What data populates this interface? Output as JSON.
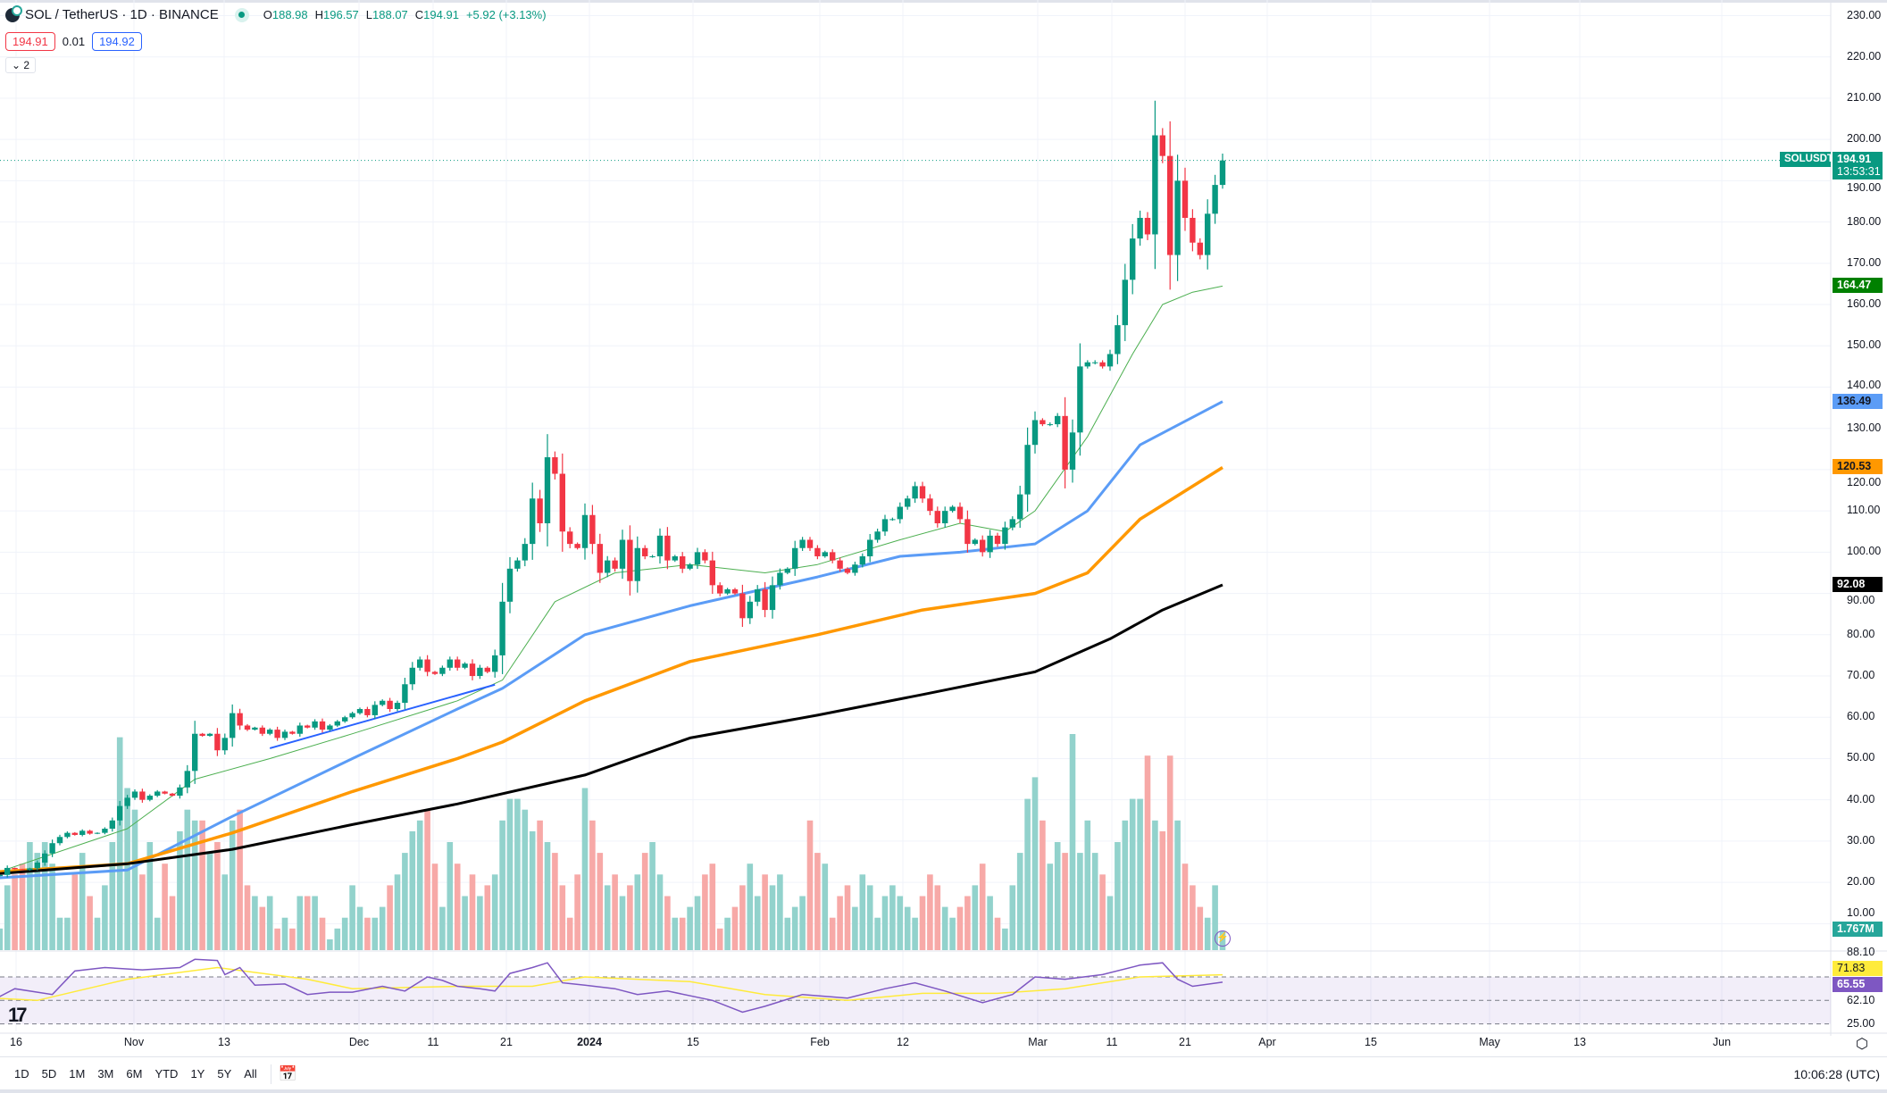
{
  "header": {
    "symbol": "SOL / TetherUS · 1D · BINANCE",
    "open_label": "O",
    "open": "188.98",
    "high_label": "H",
    "high": "196.57",
    "low_label": "L",
    "low": "188.07",
    "close_label": "C",
    "close": "194.91",
    "change": "+5.92 (+3.13%)",
    "bid": "194.91",
    "spread": "0.01",
    "ask": "194.92",
    "indicators_collapsed": "⌄ 2"
  },
  "price_axis": {
    "ticks": [
      "230.00",
      "220.00",
      "210.00",
      "200.00",
      "190.00",
      "180.00",
      "170.00",
      "160.00",
      "150.00",
      "140.00",
      "130.00",
      "120.00",
      "110.00",
      "100.00",
      "90.00",
      "80.00",
      "70.00",
      "60.00",
      "50.00",
      "40.00",
      "30.00",
      "20.00",
      "10.00"
    ],
    "symbol_tag": "SOLUSDT",
    "last_price": "194.91",
    "countdown": "13:53:31",
    "ma_badges": [
      {
        "value": "164.47",
        "color": "#008000",
        "text_color": "#ffffff"
      },
      {
        "value": "136.49",
        "color": "#5b9cf6",
        "text_color": "#131722"
      },
      {
        "value": "120.53",
        "color": "#ff9800",
        "text_color": "#131722"
      },
      {
        "value": "92.08",
        "color": "#000000",
        "text_color": "#ffffff"
      }
    ],
    "volume_badge": "1.767M"
  },
  "rsi_axis": {
    "ticks": [
      "88.10",
      "62.10",
      "25.00"
    ],
    "rsi_ma_badge": "71.83",
    "rsi_badge": "65.55",
    "rsi_ma_color": "#ffeb3b",
    "rsi_color": "#7e57c2"
  },
  "time_axis": [
    "16",
    "Nov",
    "13",
    "Dec",
    "11",
    "21",
    "2024",
    "15",
    "Feb",
    "12",
    "Mar",
    "11",
    "21",
    "Apr",
    "15",
    "May",
    "13",
    "Jun"
  ],
  "toolbar": {
    "ranges": [
      "1D",
      "5D",
      "1M",
      "3M",
      "6M",
      "YTD",
      "1Y",
      "5Y",
      "All"
    ],
    "goto_icon": "calendar-goto-icon",
    "clock": "10:06:28 (UTC)"
  },
  "colors": {
    "up": "#089981",
    "down": "#f23645",
    "vol_up": "#92d2cc",
    "vol_down": "#f7a9a7"
  },
  "chart_data": {
    "type": "candlestick",
    "start_date": "2023-10-14",
    "end_date": "2024-03-26",
    "ylim": [
      10,
      230
    ],
    "last_candle": {
      "open": 188.98,
      "high": 196.57,
      "low": 188.07,
      "close": 194.91
    },
    "closes": [
      21.5,
      21.8,
      23.5,
      23.2,
      23,
      23.4,
      24.8,
      27,
      29.5,
      31,
      32,
      31.5,
      32.5,
      31.8,
      32,
      33,
      35,
      38.5,
      40.5,
      42,
      40,
      41,
      42,
      41.5,
      41,
      43,
      47,
      56,
      55.5,
      56,
      52,
      55,
      61,
      58,
      57,
      57.5,
      56,
      57,
      55,
      56.5,
      56,
      58,
      57.5,
      59,
      57,
      58,
      59,
      60,
      61,
      62,
      60.5,
      63,
      64,
      62,
      63.5,
      68,
      72,
      74,
      71,
      70.5,
      72,
      74,
      72,
      73,
      70,
      72,
      71,
      75,
      88,
      96,
      98,
      102,
      113,
      107,
      123,
      119,
      105,
      102,
      101,
      109,
      102,
      95,
      98,
      96,
      103,
      93,
      101,
      99,
      99,
      104,
      98,
      99,
      96,
      97,
      100,
      98,
      92,
      90,
      91,
      90,
      84,
      88,
      91,
      86,
      92,
      95,
      96,
      101,
      103,
      101,
      99,
      100,
      98,
      96,
      95,
      97,
      99,
      103,
      105,
      108,
      108,
      111,
      113,
      116,
      113,
      110,
      107,
      110,
      111,
      108,
      102,
      103,
      100,
      104,
      102,
      106,
      108,
      114,
      126,
      132,
      131,
      131,
      133,
      120,
      129,
      145,
      146,
      146,
      145,
      148,
      155,
      166,
      176,
      181,
      177,
      201,
      196,
      172,
      190,
      181,
      175,
      172,
      182,
      188.98,
      194.91
    ],
    "volume_millions": [
      1,
      2,
      6,
      7,
      8,
      10,
      9,
      10,
      8,
      3,
      3,
      7,
      9,
      5,
      3,
      6,
      10,
      19.7,
      15,
      13,
      7,
      10,
      3,
      8,
      5,
      11,
      13,
      12,
      12,
      9,
      10,
      7,
      12,
      13,
      6,
      5,
      4,
      5,
      2,
      3,
      2,
      5,
      5,
      5,
      3,
      1,
      2,
      3,
      6,
      4,
      3,
      3,
      4,
      6,
      7,
      9,
      11,
      12,
      13,
      8,
      4,
      10,
      8,
      5,
      7,
      5,
      6,
      7,
      12,
      14,
      14,
      13,
      11,
      12,
      10,
      9,
      6,
      3,
      7,
      15,
      12,
      9,
      6,
      7,
      5,
      6,
      7,
      9,
      10,
      7,
      5,
      3,
      3,
      4,
      5,
      7,
      8,
      2,
      3,
      4,
      6,
      8,
      5,
      7,
      6,
      7,
      3,
      4,
      5,
      12,
      9,
      8,
      3,
      5,
      6,
      4,
      7,
      6,
      3,
      5,
      6,
      5,
      4,
      3,
      5,
      7,
      6,
      4,
      3,
      4,
      5,
      6,
      8,
      5,
      3,
      2,
      6,
      9,
      14,
      16,
      12,
      8,
      10,
      9,
      20,
      9,
      12,
      9,
      7,
      5,
      10,
      12,
      14,
      14,
      18,
      12,
      11,
      18,
      12,
      8,
      6,
      4,
      3,
      6,
      1.767
    ],
    "moving_averages": [
      {
        "color": "#4caf50",
        "width": 1,
        "last": 164.47,
        "points": [
          [
            "2023-10-14",
            22
          ],
          [
            "2023-11-01",
            33
          ],
          [
            "2023-11-10",
            45
          ],
          [
            "2023-11-20",
            50
          ],
          [
            "2023-12-01",
            56
          ],
          [
            "2023-12-15",
            64
          ],
          [
            "2023-12-21",
            69
          ],
          [
            "2023-12-28",
            88
          ],
          [
            "2024-01-05",
            95
          ],
          [
            "2024-01-15",
            97
          ],
          [
            "2024-01-25",
            95
          ],
          [
            "2024-02-01",
            97
          ],
          [
            "2024-02-12",
            103
          ],
          [
            "2024-02-20",
            107
          ],
          [
            "2024-02-26",
            105
          ],
          [
            "2024-03-01",
            110
          ],
          [
            "2024-03-08",
            128
          ],
          [
            "2024-03-14",
            148
          ],
          [
            "2024-03-18",
            160
          ],
          [
            "2024-03-22",
            163
          ],
          [
            "2024-03-26",
            164.47
          ]
        ]
      },
      {
        "color": "#5b9cf6",
        "width": 3,
        "last": 136.49,
        "points": [
          [
            "2023-10-14",
            21
          ],
          [
            "2023-11-01",
            23
          ],
          [
            "2023-11-15",
            36
          ],
          [
            "2023-12-01",
            50
          ],
          [
            "2023-12-15",
            62
          ],
          [
            "2023-12-21",
            67
          ],
          [
            "2024-01-01",
            80
          ],
          [
            "2024-01-15",
            87
          ],
          [
            "2024-02-01",
            94
          ],
          [
            "2024-02-12",
            99
          ],
          [
            "2024-02-20",
            100
          ],
          [
            "2024-03-01",
            102
          ],
          [
            "2024-03-08",
            110
          ],
          [
            "2024-03-15",
            126
          ],
          [
            "2024-03-26",
            136.49
          ]
        ]
      },
      {
        "color": "#ff9800",
        "width": 3.5,
        "last": 120.53,
        "points": [
          [
            "2023-10-14",
            22.5
          ],
          [
            "2023-11-01",
            24.5
          ],
          [
            "2023-11-15",
            32
          ],
          [
            "2023-12-01",
            42
          ],
          [
            "2023-12-15",
            50
          ],
          [
            "2023-12-21",
            54
          ],
          [
            "2024-01-01",
            64
          ],
          [
            "2024-01-15",
            73.5
          ],
          [
            "2024-02-01",
            80
          ],
          [
            "2024-02-15",
            86
          ],
          [
            "2024-03-01",
            90
          ],
          [
            "2024-03-08",
            95
          ],
          [
            "2024-03-15",
            108
          ],
          [
            "2024-03-26",
            120.53
          ]
        ]
      },
      {
        "color": "#000000",
        "width": 3,
        "last": 92.08,
        "points": [
          [
            "2023-10-14",
            22
          ],
          [
            "2023-11-01",
            24.5
          ],
          [
            "2023-11-15",
            28
          ],
          [
            "2023-12-01",
            34
          ],
          [
            "2023-12-15",
            39
          ],
          [
            "2024-01-01",
            46
          ],
          [
            "2024-01-15",
            55
          ],
          [
            "2024-02-01",
            60.5
          ],
          [
            "2024-02-15",
            65.5
          ],
          [
            "2024-03-01",
            71
          ],
          [
            "2024-03-11",
            79
          ],
          [
            "2024-03-18",
            86
          ],
          [
            "2024-03-26",
            92.08
          ]
        ]
      }
    ],
    "trendline": {
      "color": "#2962ff",
      "from": [
        "2023-11-20",
        52.5
      ],
      "to": [
        "2023-12-20",
        67.9
      ]
    },
    "rsi": {
      "upper_band": 70,
      "middle_band": 50,
      "lower_band": 30,
      "points": [
        [
          "2023-10-14",
          50
        ],
        [
          "2023-10-17",
          60
        ],
        [
          "2023-10-22",
          55
        ],
        [
          "2023-10-25",
          75
        ],
        [
          "2023-10-29",
          78
        ],
        [
          "2023-11-03",
          76
        ],
        [
          "2023-11-08",
          78
        ],
        [
          "2023-11-10",
          85
        ],
        [
          "2023-11-13",
          84
        ],
        [
          "2023-11-14",
          72
        ],
        [
          "2023-11-16",
          78
        ],
        [
          "2023-11-18",
          63
        ],
        [
          "2023-11-22",
          64
        ],
        [
          "2023-11-25",
          55
        ],
        [
          "2023-11-28",
          57
        ],
        [
          "2023-12-01",
          57
        ],
        [
          "2023-12-05",
          62
        ],
        [
          "2023-12-08",
          58
        ],
        [
          "2023-12-11",
          70
        ],
        [
          "2023-12-13",
          67
        ],
        [
          "2023-12-15",
          62
        ],
        [
          "2023-12-18",
          60
        ],
        [
          "2023-12-20",
          58
        ],
        [
          "2023-12-22",
          73
        ],
        [
          "2023-12-25",
          78
        ],
        [
          "2023-12-27",
          82
        ],
        [
          "2023-12-29",
          65
        ],
        [
          "2024-01-01",
          63
        ],
        [
          "2024-01-05",
          60
        ],
        [
          "2024-01-08",
          55
        ],
        [
          "2024-01-12",
          58
        ],
        [
          "2024-01-18",
          50
        ],
        [
          "2024-01-22",
          40
        ],
        [
          "2024-01-25",
          45
        ],
        [
          "2024-01-30",
          55
        ],
        [
          "2024-02-05",
          52
        ],
        [
          "2024-02-10",
          60
        ],
        [
          "2024-02-14",
          65
        ],
        [
          "2024-02-18",
          58
        ],
        [
          "2024-02-23",
          48
        ],
        [
          "2024-02-27",
          55
        ],
        [
          "2024-03-01",
          70
        ],
        [
          "2024-03-05",
          68
        ],
        [
          "2024-03-10",
          72
        ],
        [
          "2024-03-15",
          80
        ],
        [
          "2024-03-18",
          82
        ],
        [
          "2024-03-20",
          68
        ],
        [
          "2024-03-22",
          62
        ],
        [
          "2024-03-26",
          65.55
        ]
      ],
      "ma_points": [
        [
          "2023-10-14",
          52
        ],
        [
          "2023-10-20",
          50
        ],
        [
          "2023-11-01",
          68
        ],
        [
          "2023-11-13",
          78
        ],
        [
          "2023-11-25",
          68
        ],
        [
          "2023-12-01",
          60
        ],
        [
          "2023-12-15",
          62
        ],
        [
          "2023-12-25",
          62
        ],
        [
          "2024-01-01",
          70
        ],
        [
          "2024-01-15",
          66
        ],
        [
          "2024-01-25",
          55
        ],
        [
          "2024-02-05",
          50
        ],
        [
          "2024-02-15",
          56
        ],
        [
          "2024-02-25",
          56
        ],
        [
          "2024-03-05",
          60
        ],
        [
          "2024-03-15",
          70
        ],
        [
          "2024-03-26",
          71.83
        ]
      ]
    }
  }
}
